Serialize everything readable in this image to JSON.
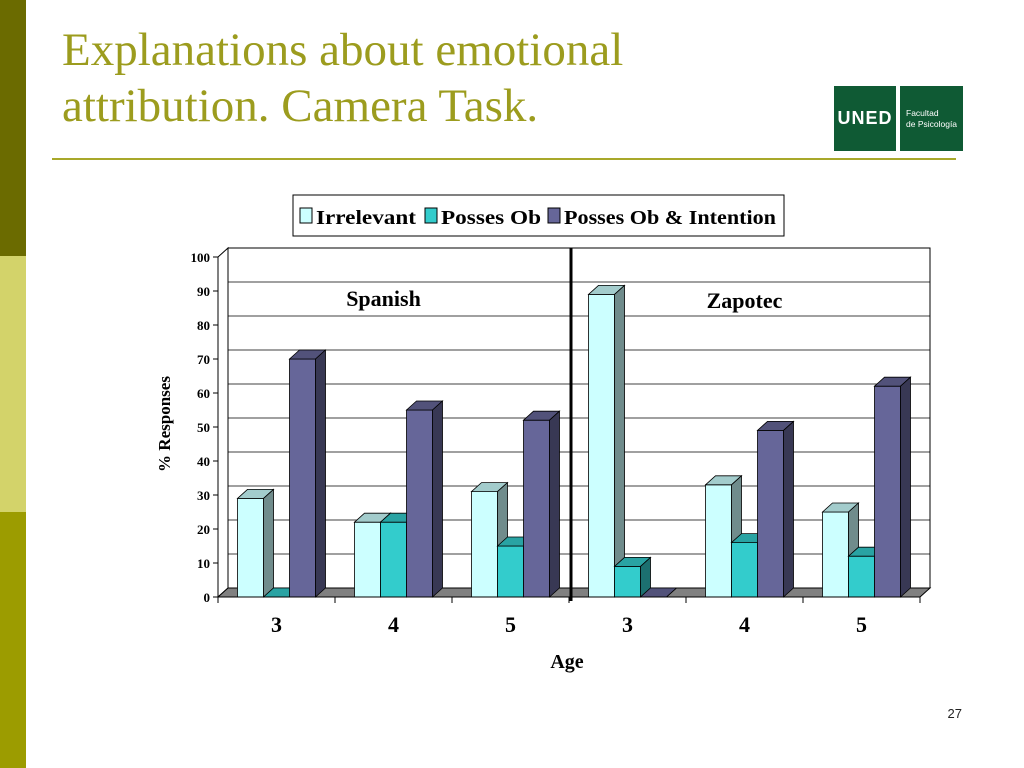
{
  "slide": {
    "title_line1": "Explanations about emotional",
    "title_line2": "attribution. Camera Task.",
    "page_number": "27"
  },
  "logo": {
    "mark": "UNED",
    "line1": "Facultad",
    "line2": "de Psicología",
    "color": "#0f5a34"
  },
  "chart_data": {
    "type": "bar",
    "variant": "3d-clustered-column",
    "xlabel": "Age",
    "ylabel": "% Responses",
    "ylim": [
      0,
      100
    ],
    "yticks": [
      0,
      10,
      20,
      30,
      40,
      50,
      60,
      70,
      80,
      90,
      100
    ],
    "grid": true,
    "legend_position": "top",
    "groups": [
      {
        "label": "Spanish",
        "categories": [
          "3",
          "4",
          "5"
        ]
      },
      {
        "label": "Zapotec",
        "categories": [
          "3",
          "4",
          "5"
        ]
      }
    ],
    "categories": [
      "3",
      "4",
      "5",
      "3",
      "4",
      "5"
    ],
    "series": [
      {
        "name": "Irrelevant",
        "color": "#ccffff",
        "values": [
          29,
          22,
          31,
          89,
          33,
          25
        ]
      },
      {
        "name": "Posses Ob",
        "color": "#33cccc",
        "values": [
          0,
          22,
          15,
          9,
          16,
          12
        ]
      },
      {
        "name": "Posses Ob & Intention",
        "color": "#666699",
        "values": [
          70,
          55,
          52,
          0,
          49,
          62
        ]
      }
    ]
  }
}
